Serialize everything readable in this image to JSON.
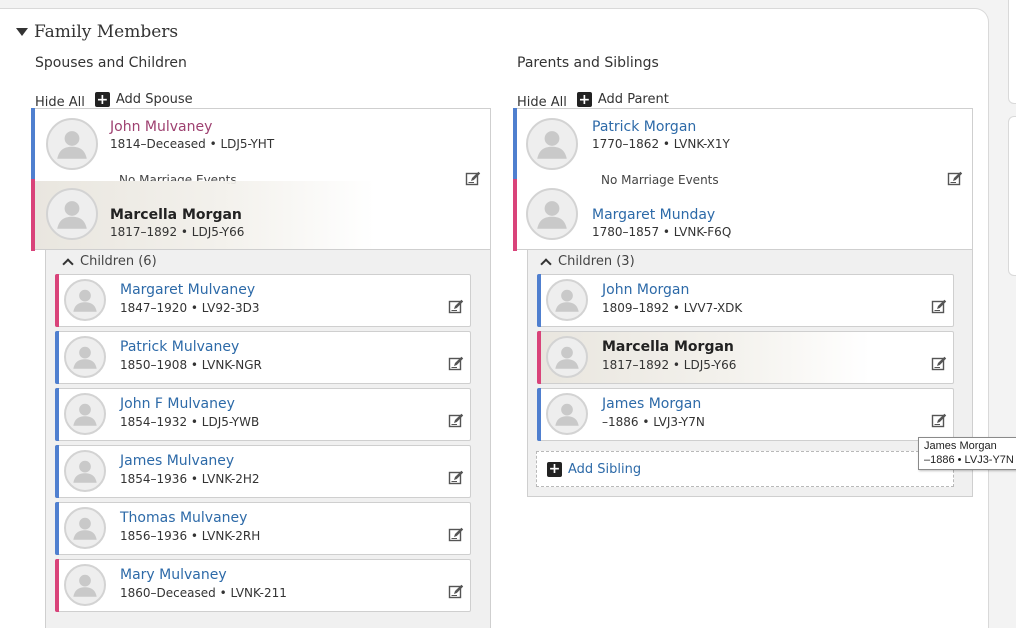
{
  "section": {
    "title": "Family Members"
  },
  "spouses": {
    "title": "Spouses and Children",
    "hide_all": "Hide All",
    "add_label": "Add Spouse",
    "couple": {
      "husband": {
        "name": "John Mulvaney",
        "meta": "1814–Deceased • LDJ5-YHT",
        "gender": "male"
      },
      "marriage": "No Marriage Events",
      "wife": {
        "name": "Marcella Morgan",
        "meta": "1817–1892 • LDJ5-Y66",
        "gender": "female"
      }
    },
    "children_label": "Children (6)",
    "children": [
      {
        "name": "Margaret Mulvaney",
        "meta": "1847–1920 • LV92-3D3",
        "gender": "female"
      },
      {
        "name": "Patrick Mulvaney",
        "meta": "1850–1908 • LVNK-NGR",
        "gender": "male"
      },
      {
        "name": "John F Mulvaney",
        "meta": "1854–1932 • LDJ5-YWB",
        "gender": "male"
      },
      {
        "name": "James Mulvaney",
        "meta": "1854–1936 • LVNK-2H2",
        "gender": "male"
      },
      {
        "name": "Thomas Mulvaney",
        "meta": "1856–1936 • LVNK-2RH",
        "gender": "male"
      },
      {
        "name": "Mary Mulvaney",
        "meta": "1860–Deceased • LVNK-211",
        "gender": "female"
      }
    ]
  },
  "parents": {
    "title": "Parents and Siblings",
    "hide_all": "Hide All",
    "add_label": "Add Parent",
    "couple": {
      "father": {
        "name": "Patrick Morgan",
        "meta": "1770–1862 • LVNK-X1Y",
        "gender": "male"
      },
      "marriage": "No Marriage Events",
      "mother": {
        "name": "Margaret Munday",
        "meta": "1780–1857 • LVNK-F6Q",
        "gender": "female"
      }
    },
    "children_label": "Children (3)",
    "children": [
      {
        "name": "John Morgan",
        "meta": "1809–1892 • LVV7-XDK",
        "gender": "male"
      },
      {
        "name": "Marcella Morgan",
        "meta": "1817–1892 • LDJ5-Y66",
        "gender": "female"
      },
      {
        "name": "James Morgan",
        "meta": "–1886 • LVJ3-Y7N",
        "gender": "male"
      }
    ],
    "add_sibling": "Add Sibling"
  },
  "tooltip": {
    "line1": "James Morgan",
    "line2": "–1886 • LVJ3-Y7N"
  },
  "colors": {
    "male": "#4f7fcf",
    "female": "#d9437a",
    "link": "#2d6aa8"
  },
  "icons": {
    "avatar": "person-silhouette-icon",
    "edit": "edit-pencil-icon",
    "add": "plus-square-icon"
  }
}
